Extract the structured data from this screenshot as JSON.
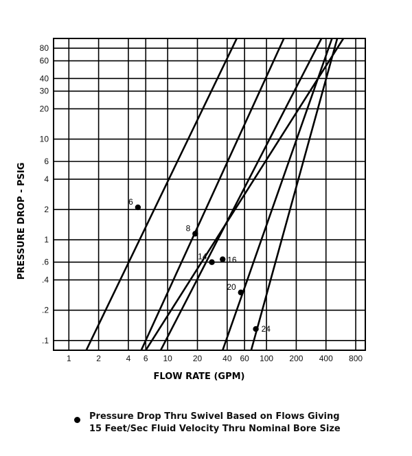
{
  "chart_data": {
    "type": "line",
    "xlabel": "FLOW RATE (GPM)",
    "ylabel": "PRESSURE DROP - PSIG",
    "x_scale": "log",
    "y_scale": "log",
    "xlim": [
      0.7,
      1000
    ],
    "ylim": [
      0.08,
      100
    ],
    "x_ticks": [
      1,
      2,
      4,
      6,
      10,
      20,
      40,
      60,
      100,
      200,
      400,
      800
    ],
    "x_tick_labels": [
      "1",
      "2",
      "4",
      "6",
      "10",
      "20",
      "40",
      "60",
      "100",
      "200",
      "400",
      "800"
    ],
    "y_ticks": [
      0.1,
      0.2,
      0.4,
      0.6,
      1,
      2,
      4,
      6,
      10,
      20,
      30,
      40,
      60,
      80
    ],
    "y_tick_labels": [
      ".1",
      ".2",
      ".4",
      ".6",
      "1",
      "2",
      "4",
      "6",
      "10",
      "20",
      "30",
      "40",
      "60",
      "80"
    ],
    "grid": true,
    "series": [
      {
        "name": "6",
        "points": [
          [
            1.5,
            0.08
          ],
          [
            50,
            100
          ]
        ],
        "marker": [
          5,
          2.1
        ]
      },
      {
        "name": "8",
        "points": [
          [
            5.4,
            0.08
          ],
          [
            150,
            100
          ]
        ],
        "marker": [
          19,
          1.15
        ]
      },
      {
        "name": "14",
        "points": [
          [
            8.5,
            0.08
          ],
          [
            360,
            100
          ]
        ],
        "marker": [
          28,
          0.6
        ]
      },
      {
        "name": "16",
        "points": [
          [
            6,
            0.08
          ],
          [
            600,
            100
          ]
        ],
        "marker": [
          36,
          0.64
        ]
      },
      {
        "name": "20",
        "points": [
          [
            36,
            0.08
          ],
          [
            460,
            100
          ]
        ],
        "marker": [
          55,
          0.3
        ]
      },
      {
        "name": "24",
        "points": [
          [
            70,
            0.08
          ],
          [
            520,
            100
          ]
        ],
        "marker": [
          78,
          0.13
        ]
      }
    ]
  },
  "legend": {
    "line1": "Pressure Drop Thru Swivel Based on Flows Giving",
    "line2": "15 Feet/Sec Fluid Velocity Thru Nominal Bore Size"
  }
}
